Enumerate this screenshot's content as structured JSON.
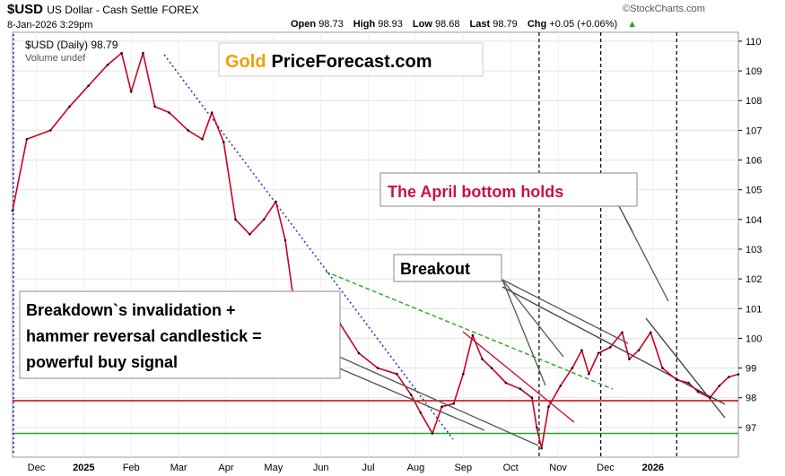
{
  "header": {
    "symbol": "$USD",
    "name": "US Dollar - Cash Settle",
    "exchange": "FOREX",
    "date": "8-Jan-2026 3:29pm",
    "open_label": "Open",
    "open": "98.73",
    "high_label": "High",
    "high": "98.93",
    "low_label": "Low",
    "low": "98.68",
    "last_label": "Last",
    "last": "98.79",
    "chg_label": "Chg",
    "chg": "+0.05 (+0.06%)",
    "logo": "©StockCharts.com"
  },
  "chart_data": {
    "type": "line",
    "legend": [
      "$USD (Daily) 98.79",
      "Volume undef"
    ],
    "watermark": {
      "brand": "Gold",
      "rest": "PriceForecast.com"
    },
    "ylim": [
      96,
      110.3
    ],
    "y_ticks": [
      97,
      98,
      99,
      100,
      101,
      102,
      103,
      104,
      105,
      106,
      107,
      108,
      109,
      110
    ],
    "x_labels": [
      {
        "label": "Dec",
        "t": 0.5,
        "bold": false
      },
      {
        "label": "2025",
        "t": 1.5,
        "bold": true
      },
      {
        "label": "Feb",
        "t": 2.5,
        "bold": false
      },
      {
        "label": "Mar",
        "t": 3.5,
        "bold": false
      },
      {
        "label": "Apr",
        "t": 4.5,
        "bold": false
      },
      {
        "label": "May",
        "t": 5.5,
        "bold": false
      },
      {
        "label": "Jun",
        "t": 6.5,
        "bold": false
      },
      {
        "label": "Jul",
        "t": 7.5,
        "bold": false
      },
      {
        "label": "Aug",
        "t": 8.5,
        "bold": false
      },
      {
        "label": "Sep",
        "t": 9.5,
        "bold": false
      },
      {
        "label": "Oct",
        "t": 10.5,
        "bold": false
      },
      {
        "label": "Nov",
        "t": 11.5,
        "bold": false
      },
      {
        "label": "Dec",
        "t": 12.5,
        "bold": false
      },
      {
        "label": "2026",
        "t": 13.5,
        "bold": true
      }
    ],
    "series": [
      {
        "points": [
          [
            0.0,
            104.3
          ],
          [
            0.3,
            106.7
          ],
          [
            0.8,
            107.0
          ],
          [
            1.2,
            107.8
          ],
          [
            1.6,
            108.5
          ],
          [
            2.0,
            109.2
          ],
          [
            2.3,
            109.6
          ],
          [
            2.5,
            108.3
          ],
          [
            2.75,
            109.6
          ],
          [
            3.0,
            107.8
          ],
          [
            3.3,
            107.6
          ],
          [
            3.7,
            107.0
          ],
          [
            4.0,
            106.7
          ],
          [
            4.2,
            107.6
          ],
          [
            4.45,
            106.6
          ],
          [
            4.7,
            104.0
          ],
          [
            5.0,
            103.5
          ],
          [
            5.3,
            104.0
          ],
          [
            5.55,
            104.6
          ],
          [
            5.75,
            103.3
          ],
          [
            5.95,
            101.0
          ],
          [
            6.15,
            99.6
          ],
          [
            6.35,
            98.7
          ],
          [
            6.6,
            99.8
          ],
          [
            6.9,
            100.5
          ],
          [
            7.3,
            99.5
          ],
          [
            7.7,
            99.0
          ],
          [
            8.1,
            98.8
          ],
          [
            8.4,
            98.1
          ],
          [
            8.6,
            97.5
          ],
          [
            8.85,
            96.8
          ],
          [
            9.05,
            97.7
          ],
          [
            9.3,
            97.8
          ],
          [
            9.5,
            98.8
          ],
          [
            9.7,
            100.1
          ],
          [
            9.9,
            99.3
          ],
          [
            10.1,
            99.0
          ],
          [
            10.4,
            98.5
          ],
          [
            10.7,
            98.3
          ],
          [
            10.95,
            98.0
          ],
          [
            11.05,
            97.0
          ],
          [
            11.15,
            96.3
          ],
          [
            11.3,
            97.7
          ],
          [
            11.55,
            98.4
          ],
          [
            11.8,
            99.0
          ],
          [
            12.0,
            99.6
          ],
          [
            12.15,
            98.8
          ],
          [
            12.35,
            99.5
          ],
          [
            12.6,
            99.7
          ],
          [
            12.85,
            100.2
          ],
          [
            13.0,
            99.3
          ],
          [
            13.2,
            99.6
          ],
          [
            13.45,
            100.2
          ],
          [
            13.7,
            99.0
          ],
          [
            14.0,
            98.6
          ],
          [
            14.25,
            98.5
          ],
          [
            14.45,
            98.2
          ],
          [
            14.7,
            98.0
          ],
          [
            14.9,
            98.4
          ],
          [
            15.1,
            98.7
          ],
          [
            15.3,
            98.79
          ]
        ]
      }
    ],
    "support_lines": [
      97.9,
      96.8
    ],
    "event_lines_t": [
      11.1,
      12.4,
      14.0
    ],
    "annotations": [
      "The April bottom holds",
      "Breakout",
      "Breakdown`s invalidation +",
      "hammer reversal candlestick =",
      "powerful buy signal"
    ],
    "grid": true,
    "colors": {
      "price": "#cc0022",
      "ticks": "#000000",
      "support": "#cc0000",
      "support2": "#22aa22",
      "down_trend": "#3333cc",
      "green_trend": "#22aa22",
      "april_text": "#cc1144",
      "gold": "#f0a000",
      "vline": "#000000"
    }
  }
}
